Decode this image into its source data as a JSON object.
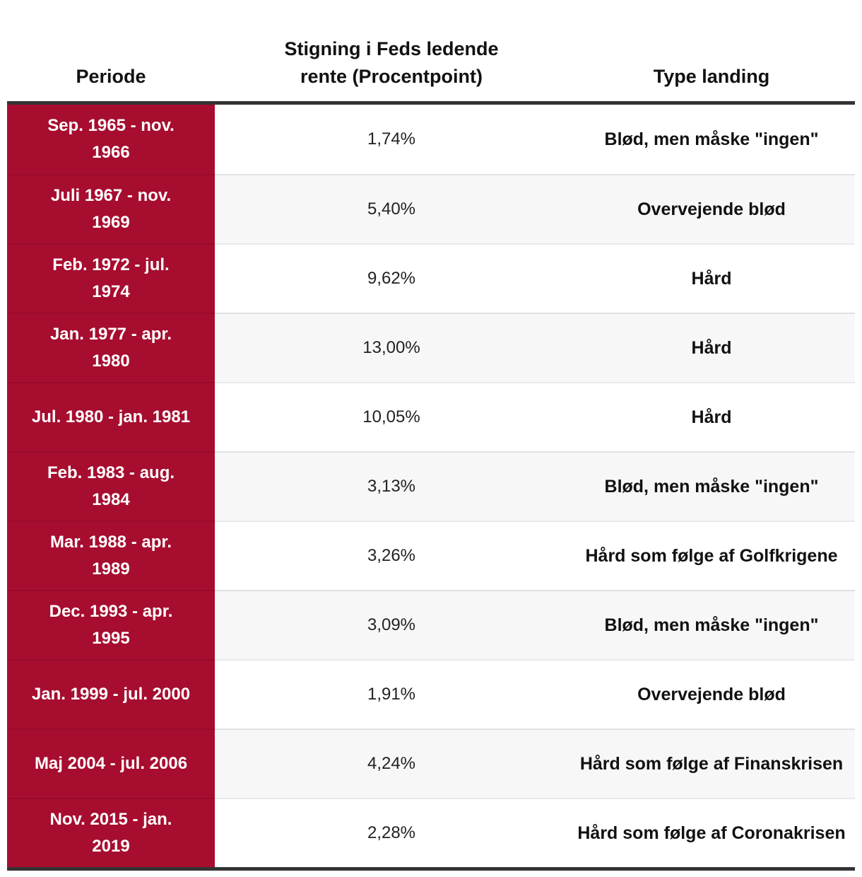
{
  "colors": {
    "accent_red": "#a70d2f",
    "rule_dark": "#333333",
    "row_stripe": "#f7f7f7",
    "text_dark": "#1b1b1b"
  },
  "table": {
    "columns": [
      {
        "label": "Periode"
      },
      {
        "label": "Stigning i Feds ledende rente (Procentpoint)"
      },
      {
        "label": "Type landing"
      }
    ],
    "rows": [
      {
        "periode": "Sep. 1965 - nov. 1966",
        "stigning": "1,74%",
        "landing": "Blød, men måske \"ingen\""
      },
      {
        "periode": "Juli 1967 - nov. 1969",
        "stigning": "5,40%",
        "landing": "Overvejende blød"
      },
      {
        "periode": "Feb. 1972 - jul. 1974",
        "stigning": "9,62%",
        "landing": "Hård"
      },
      {
        "periode": "Jan. 1977 - apr. 1980",
        "stigning": "13,00%",
        "landing": "Hård"
      },
      {
        "periode": "Jul. 1980 - jan. 1981",
        "stigning": "10,05%",
        "landing": "Hård"
      },
      {
        "periode": "Feb. 1983 - aug. 1984",
        "stigning": "3,13%",
        "landing": "Blød, men måske \"ingen\""
      },
      {
        "periode": "Mar. 1988 - apr. 1989",
        "stigning": "3,26%",
        "landing": "Hård som følge af Golfkrigene"
      },
      {
        "periode": "Dec. 1993 - apr. 1995",
        "stigning": "3,09%",
        "landing": "Blød, men måske \"ingen\""
      },
      {
        "periode": "Jan. 1999 - jul. 2000",
        "stigning": "1,91%",
        "landing": "Overvejende blød"
      },
      {
        "periode": "Maj 2004 - jul. 2006",
        "stigning": "4,24%",
        "landing": "Hård som følge af Finanskrisen"
      },
      {
        "periode": "Nov. 2015 - jan. 2019",
        "stigning": "2,28%",
        "landing": "Hård som følge af Coronakrisen"
      }
    ]
  },
  "chart_data": {
    "type": "table",
    "columns": [
      "Periode",
      "Stigning i Feds ledende rente (Procentpoint)",
      "Type landing"
    ],
    "rows": [
      [
        "Sep. 1965 - nov. 1966",
        "1,74%",
        "Blød, men måske \"ingen\""
      ],
      [
        "Juli 1967 - nov. 1969",
        "5,40%",
        "Overvejende blød"
      ],
      [
        "Feb. 1972 - jul. 1974",
        "9,62%",
        "Hård"
      ],
      [
        "Jan. 1977 - apr. 1980",
        "13,00%",
        "Hård"
      ],
      [
        "Jul. 1980 - jan. 1981",
        "10,05%",
        "Hård"
      ],
      [
        "Feb. 1983 - aug. 1984",
        "3,13%",
        "Blød, men måske \"ingen\""
      ],
      [
        "Mar. 1988 - apr. 1989",
        "3,26%",
        "Hård som følge af Golfkrigene"
      ],
      [
        "Dec. 1993 - apr. 1995",
        "3,09%",
        "Blød, men måske \"ingen\""
      ],
      [
        "Jan. 1999 - jul. 2000",
        "1,91%",
        "Overvejende blød"
      ],
      [
        "Maj 2004 - jul. 2006",
        "4,24%",
        "Hård som følge af Finanskrisen"
      ],
      [
        "Nov. 2015 - jan. 2019",
        "2,28%",
        "Hård som følge af Coronakrisen"
      ]
    ],
    "values_pct": [
      1.74,
      5.4,
      9.62,
      13.0,
      10.05,
      3.13,
      3.26,
      3.09,
      1.91,
      4.24,
      2.28
    ]
  }
}
